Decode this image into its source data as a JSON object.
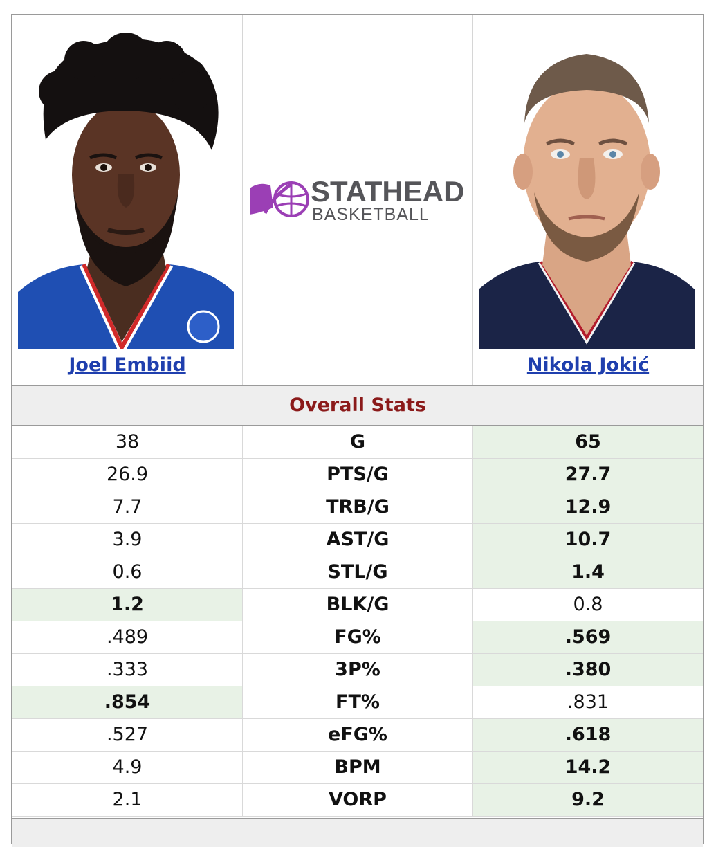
{
  "players": {
    "left": {
      "name": "Joel Embiid",
      "jersey_color": "#1f4fb3",
      "trim_color": "#d12a2a"
    },
    "right": {
      "name": "Nikola Jokić",
      "jersey_color": "#1b2447",
      "trim_color": "#ffffff"
    }
  },
  "logo": {
    "title": "STATHEAD",
    "subtitle": "BASKETBALL",
    "accent_color": "#9b3fb5"
  },
  "section": {
    "title": "Overall Stats"
  },
  "stats": [
    {
      "label": "G",
      "left": "38",
      "right": "65",
      "winner": "right"
    },
    {
      "label": "PTS/G",
      "left": "26.9",
      "right": "27.7",
      "winner": "right"
    },
    {
      "label": "TRB/G",
      "left": "7.7",
      "right": "12.9",
      "winner": "right"
    },
    {
      "label": "AST/G",
      "left": "3.9",
      "right": "10.7",
      "winner": "right"
    },
    {
      "label": "STL/G",
      "left": "0.6",
      "right": "1.4",
      "winner": "right"
    },
    {
      "label": "BLK/G",
      "left": "1.2",
      "right": "0.8",
      "winner": "left"
    },
    {
      "label": "FG%",
      "left": ".489",
      "right": ".569",
      "winner": "right"
    },
    {
      "label": "3P%",
      "left": ".333",
      "right": ".380",
      "winner": "right"
    },
    {
      "label": "FT%",
      "left": ".854",
      "right": ".831",
      "winner": "left"
    },
    {
      "label": "eFG%",
      "left": ".527",
      "right": ".618",
      "winner": "right"
    },
    {
      "label": "BPM",
      "left": "4.9",
      "right": "14.2",
      "winner": "right"
    },
    {
      "label": "VORP",
      "left": "2.1",
      "right": "9.2",
      "winner": "right"
    }
  ],
  "colors": {
    "winner_bg": "#e8f2e6",
    "section_title": "#8b1a1a",
    "link": "#1f3fae"
  }
}
